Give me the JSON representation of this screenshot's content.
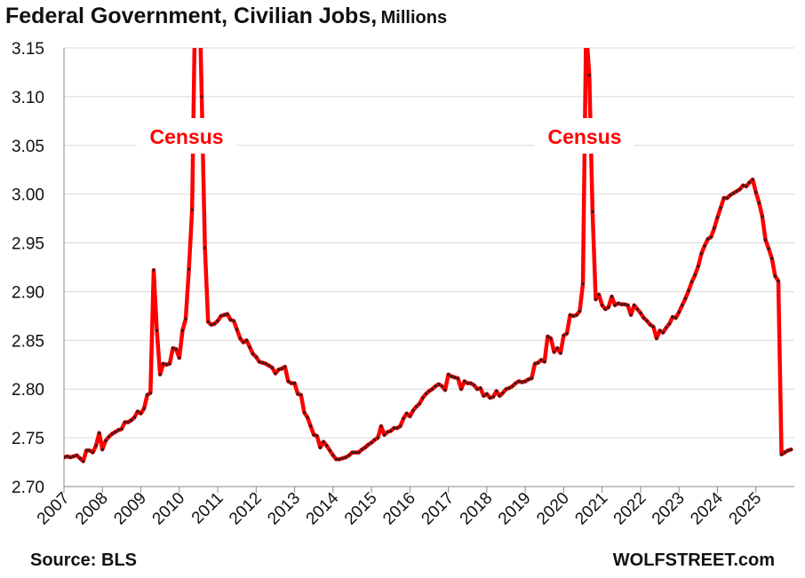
{
  "title": "Federal Government, Civilian Jobs,",
  "subtitle": "Millions",
  "source": "Source: BLS",
  "brand": "WOLFSTREET.com",
  "annotations": [
    "Census",
    "Census"
  ],
  "colors": {
    "line": "#ff0000",
    "marker": "#3a1c1c",
    "grid": "#d9d9d9",
    "annotation": "#ff0000"
  },
  "chart_data": {
    "type": "line",
    "ylim": [
      2.7,
      3.15
    ],
    "ytick_labels": [
      "2.70",
      "2.75",
      "2.80",
      "2.85",
      "2.90",
      "2.95",
      "3.00",
      "3.05",
      "3.10",
      "3.15"
    ],
    "xtick_labels": [
      "2007",
      "2008",
      "2009",
      "2010",
      "2011",
      "2012",
      "2013",
      "2014",
      "2015",
      "2016",
      "2017",
      "2018",
      "2019",
      "2020",
      "2021",
      "2022",
      "2023",
      "2024",
      "2025"
    ],
    "xlim": [
      "2007-01",
      "2026-01"
    ],
    "grid": "horizontal",
    "markers": true,
    "series": [
      {
        "x": [
          "2007-01",
          "2007-02",
          "2007-03",
          "2007-04",
          "2007-05",
          "2007-06",
          "2007-07",
          "2007-08",
          "2007-09",
          "2007-10",
          "2007-11",
          "2007-12",
          "2008-01",
          "2008-02",
          "2008-03",
          "2008-04",
          "2008-05",
          "2008-06",
          "2008-07",
          "2008-08",
          "2008-09",
          "2008-10",
          "2008-11",
          "2008-12",
          "2009-01",
          "2009-02",
          "2009-03",
          "2009-04",
          "2009-05",
          "2009-06",
          "2009-07",
          "2009-08",
          "2009-09",
          "2009-10",
          "2009-11",
          "2009-12",
          "2010-01",
          "2010-02",
          "2010-03",
          "2010-04",
          "2010-05",
          "2010-06",
          "2010-07",
          "2010-08",
          "2010-09",
          "2010-10",
          "2010-11",
          "2010-12",
          "2011-01",
          "2011-02",
          "2011-03",
          "2011-04",
          "2011-05",
          "2011-06",
          "2011-07",
          "2011-08",
          "2011-09",
          "2011-10",
          "2011-11",
          "2011-12",
          "2012-01",
          "2012-02",
          "2012-03",
          "2012-04",
          "2012-05",
          "2012-06",
          "2012-07",
          "2012-08",
          "2012-09",
          "2012-10",
          "2012-11",
          "2012-12",
          "2013-01",
          "2013-02",
          "2013-03",
          "2013-04",
          "2013-05",
          "2013-06",
          "2013-07",
          "2013-08",
          "2013-09",
          "2013-10",
          "2013-11",
          "2013-12",
          "2014-01",
          "2014-02",
          "2014-03",
          "2014-04",
          "2014-05",
          "2014-06",
          "2014-07",
          "2014-08",
          "2014-09",
          "2014-10",
          "2014-11",
          "2014-12",
          "2015-01",
          "2015-02",
          "2015-03",
          "2015-04",
          "2015-05",
          "2015-06",
          "2015-07",
          "2015-08",
          "2015-09",
          "2015-10",
          "2015-11",
          "2015-12",
          "2016-01",
          "2016-02",
          "2016-03",
          "2016-04",
          "2016-05",
          "2016-06",
          "2016-07",
          "2016-08",
          "2016-09",
          "2016-10",
          "2016-11",
          "2016-12",
          "2017-01",
          "2017-02",
          "2017-03",
          "2017-04",
          "2017-05",
          "2017-06",
          "2017-07",
          "2017-08",
          "2017-09",
          "2017-10",
          "2017-11",
          "2017-12",
          "2018-01",
          "2018-02",
          "2018-03",
          "2018-04",
          "2018-05",
          "2018-06",
          "2018-07",
          "2018-08",
          "2018-09",
          "2018-10",
          "2018-11",
          "2018-12",
          "2019-01",
          "2019-02",
          "2019-03",
          "2019-04",
          "2019-05",
          "2019-06",
          "2019-07",
          "2019-08",
          "2019-09",
          "2019-10",
          "2019-11",
          "2019-12",
          "2020-01",
          "2020-02",
          "2020-03",
          "2020-04",
          "2020-05",
          "2020-06",
          "2020-07",
          "2020-08",
          "2020-09",
          "2020-10",
          "2020-11",
          "2020-12",
          "2021-01",
          "2021-02",
          "2021-03",
          "2021-04",
          "2021-05",
          "2021-06",
          "2021-07",
          "2021-08",
          "2021-09",
          "2021-10",
          "2021-11",
          "2021-12",
          "2022-01",
          "2022-02",
          "2022-03",
          "2022-04",
          "2022-05",
          "2022-06",
          "2022-07",
          "2022-08",
          "2022-09",
          "2022-10",
          "2022-11",
          "2022-12",
          "2023-01",
          "2023-02",
          "2023-03",
          "2023-04",
          "2023-05",
          "2023-06",
          "2023-07",
          "2023-08",
          "2023-09",
          "2023-10",
          "2023-11",
          "2023-12",
          "2024-01",
          "2024-02",
          "2024-03",
          "2024-04",
          "2024-05",
          "2024-06",
          "2024-07",
          "2024-08",
          "2024-09",
          "2024-10",
          "2024-11",
          "2024-12",
          "2025-01",
          "2025-02",
          "2025-03",
          "2025-04",
          "2025-05",
          "2025-06",
          "2025-07",
          "2025-08",
          "2025-09",
          "2025-10",
          "2025-11",
          "2025-12"
        ],
        "values": [
          2.73,
          2.731,
          2.73,
          2.731,
          2.732,
          2.729,
          2.726,
          2.737,
          2.737,
          2.735,
          2.742,
          2.755,
          2.738,
          2.747,
          2.751,
          2.754,
          2.756,
          2.758,
          2.759,
          2.766,
          2.766,
          2.768,
          2.771,
          2.777,
          2.775,
          2.78,
          2.794,
          2.796,
          2.922,
          2.86,
          2.815,
          2.826,
          2.825,
          2.826,
          2.842,
          2.841,
          2.832,
          2.86,
          2.872,
          2.923,
          2.984,
          3.21,
          3.25,
          3.1,
          2.945,
          2.869,
          2.866,
          2.867,
          2.87,
          2.875,
          2.876,
          2.877,
          2.871,
          2.87,
          2.861,
          2.852,
          2.848,
          2.85,
          2.843,
          2.836,
          2.833,
          2.828,
          2.827,
          2.826,
          2.824,
          2.822,
          2.816,
          2.82,
          2.821,
          2.823,
          2.808,
          2.806,
          2.806,
          2.795,
          2.794,
          2.776,
          2.771,
          2.762,
          2.753,
          2.752,
          2.74,
          2.746,
          2.742,
          2.737,
          2.732,
          2.728,
          2.728,
          2.729,
          2.73,
          2.732,
          2.735,
          2.735,
          2.735,
          2.738,
          2.74,
          2.743,
          2.745,
          2.748,
          2.75,
          2.762,
          2.753,
          2.756,
          2.757,
          2.76,
          2.76,
          2.762,
          2.77,
          2.775,
          2.772,
          2.778,
          2.782,
          2.785,
          2.791,
          2.795,
          2.798,
          2.8,
          2.803,
          2.805,
          2.803,
          2.799,
          2.815,
          2.813,
          2.812,
          2.811,
          2.8,
          2.808,
          2.806,
          2.806,
          2.804,
          2.8,
          2.801,
          2.793,
          2.795,
          2.791,
          2.792,
          2.798,
          2.793,
          2.796,
          2.8,
          2.801,
          2.803,
          2.806,
          2.808,
          2.807,
          2.808,
          2.81,
          2.811,
          2.826,
          2.827,
          2.83,
          2.828,
          2.854,
          2.852,
          2.838,
          2.842,
          2.837,
          2.855,
          2.857,
          2.876,
          2.875,
          2.876,
          2.88,
          2.908,
          3.17,
          3.122,
          2.982,
          2.892,
          2.897,
          2.886,
          2.882,
          2.884,
          2.895,
          2.886,
          2.888,
          2.887,
          2.887,
          2.886,
          2.876,
          2.886,
          2.882,
          2.878,
          2.873,
          2.87,
          2.866,
          2.864,
          2.852,
          2.86,
          2.858,
          2.863,
          2.867,
          2.874,
          2.873,
          2.879,
          2.886,
          2.893,
          2.901,
          2.91,
          2.917,
          2.926,
          2.939,
          2.947,
          2.954,
          2.956,
          2.965,
          2.976,
          2.986,
          2.996,
          2.996,
          2.999,
          3.001,
          3.003,
          3.005,
          3.009,
          3.008,
          3.012,
          3.015,
          3.002,
          2.991,
          2.977,
          2.953,
          2.944,
          2.934,
          2.916,
          2.911,
          2.733,
          2.735,
          2.737,
          2.738
        ]
      }
    ]
  }
}
